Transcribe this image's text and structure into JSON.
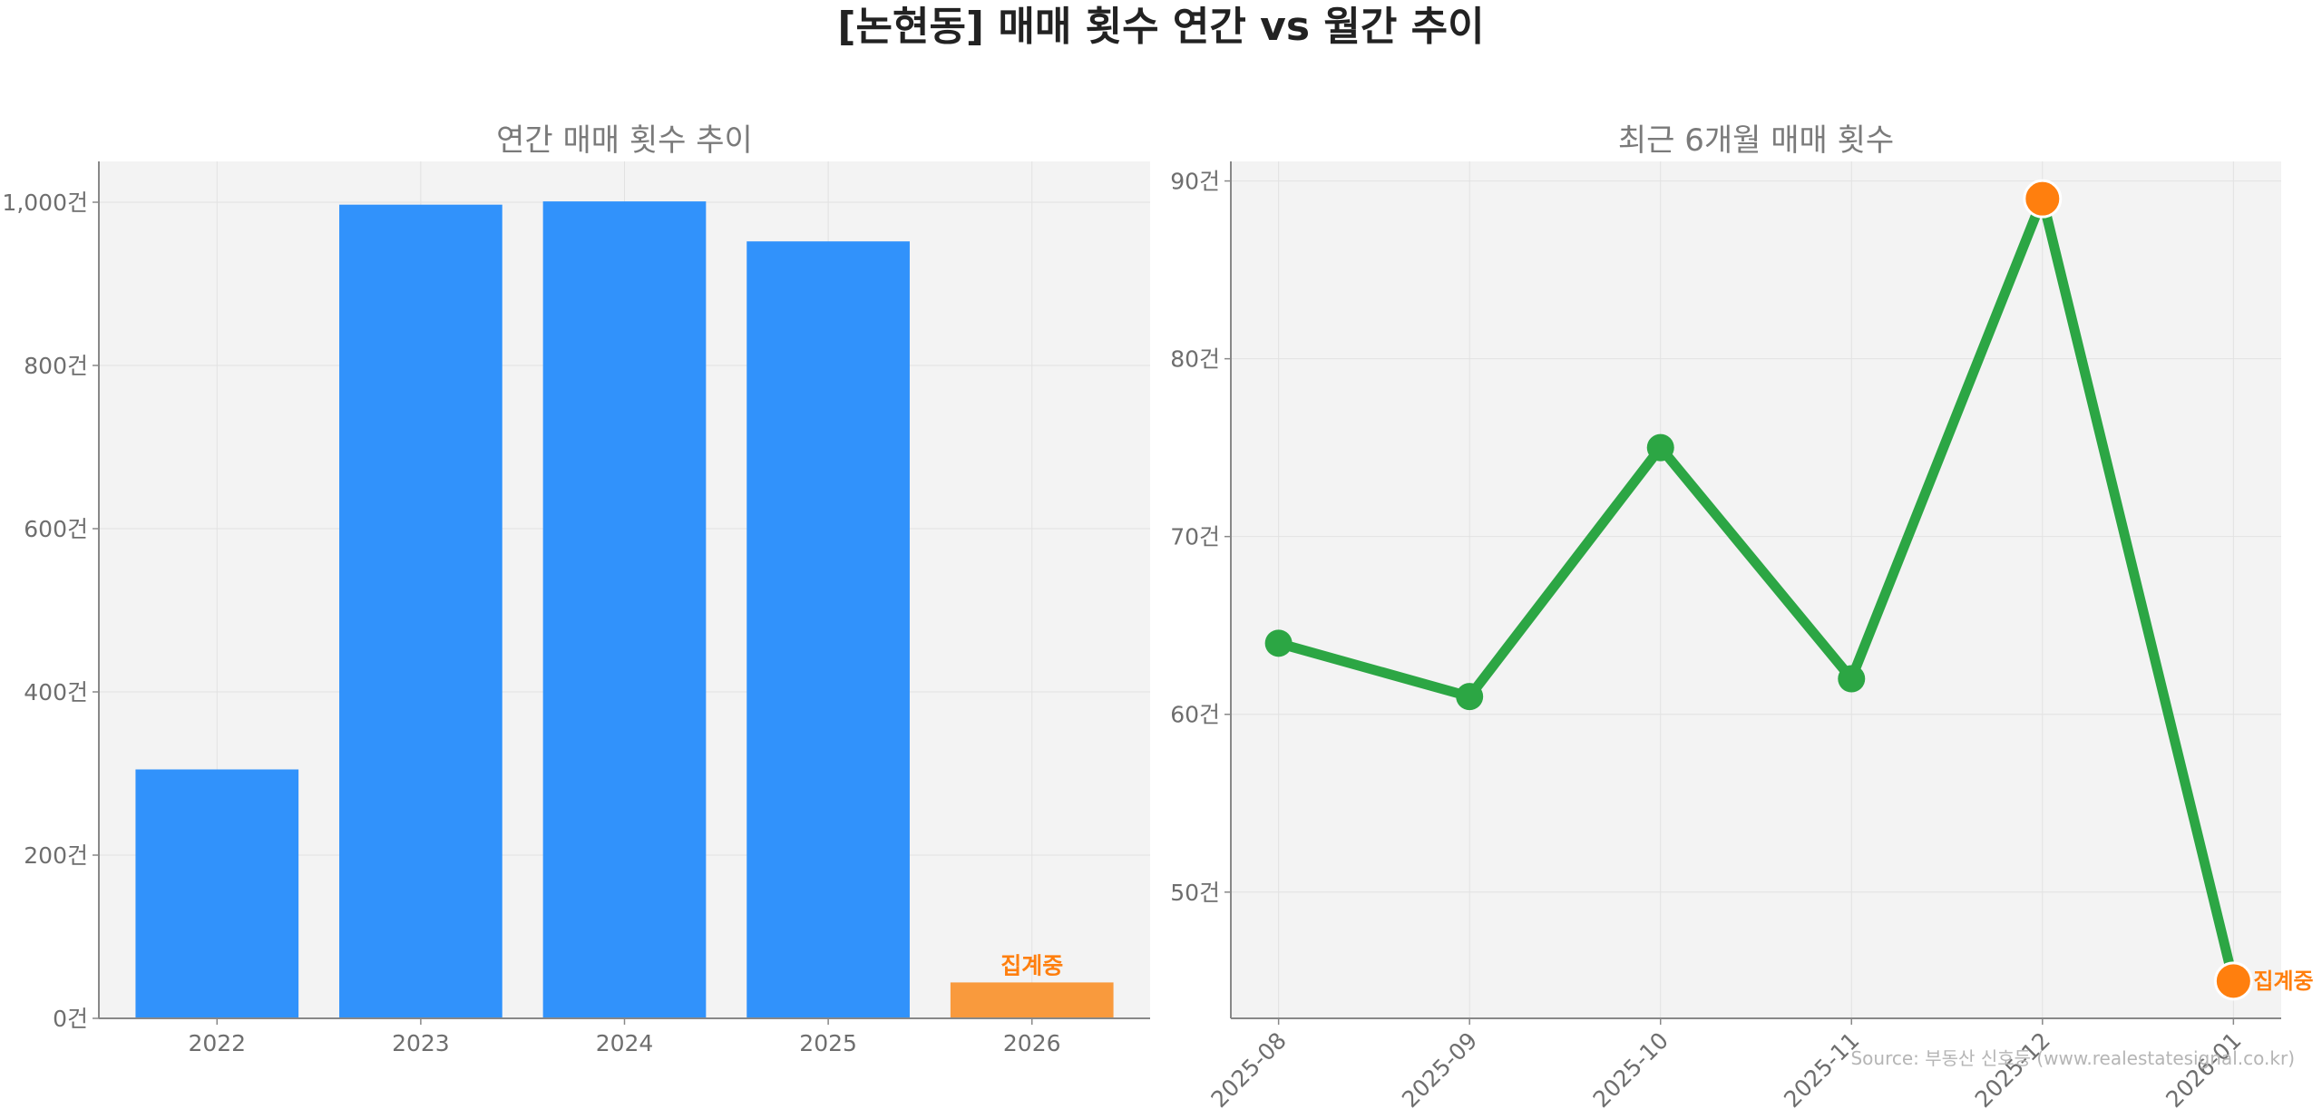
{
  "figure": {
    "title": "[논현동] 매매 횟수 연간 vs 월간 추이",
    "source": "Source: 부동산 신호등 (www.realestatesignal.co.kr)"
  },
  "colors": {
    "bar": "#3192fb",
    "bar_partial": "#f99a3d",
    "line": "#2ca644",
    "highlight": "#ff7f0e",
    "axes_bg": "#f3f3f3",
    "grid": "#e2e2e2",
    "axis": "#888888",
    "tick_text": "#6e6e6e",
    "title_text": "#222222",
    "source_text": "#b5b5b5"
  },
  "chart_data": [
    {
      "type": "bar",
      "title": "연간 매매 횟수 추이",
      "categories": [
        "2022",
        "2023",
        "2024",
        "2025",
        "2026"
      ],
      "values": [
        305,
        997,
        1001,
        952,
        44
      ],
      "partial_index": 4,
      "annotation": {
        "index": 4,
        "text": "집계중"
      },
      "ylim": [
        0,
        1050
      ],
      "yticks": [
        0,
        200,
        400,
        600,
        800,
        1000
      ],
      "ytick_labels": [
        "0건",
        "200건",
        "400건",
        "600건",
        "800건",
        "1,000건"
      ],
      "grid": true,
      "xlabel": "",
      "ylabel": ""
    },
    {
      "type": "line",
      "title": "최근 6개월 매매 횟수",
      "x": [
        "2025-08",
        "2025-09",
        "2025-10",
        "2025-11",
        "2025-12",
        "2026-01"
      ],
      "values": [
        64,
        61,
        75,
        62,
        89,
        45
      ],
      "highlight_max_index": 4,
      "highlight_last_index": 5,
      "annotation": {
        "index": 5,
        "text": "집계중"
      },
      "ylim": [
        42.9,
        91.1
      ],
      "yticks": [
        50,
        60,
        70,
        80,
        90
      ],
      "ytick_labels": [
        "50건",
        "60건",
        "70건",
        "80건",
        "90건"
      ],
      "grid": true,
      "xlabel": "",
      "ylabel": ""
    }
  ]
}
